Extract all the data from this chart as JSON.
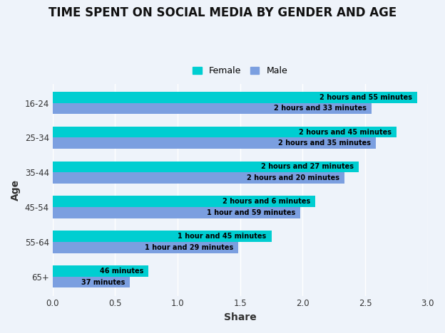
{
  "title": "TIME SPENT ON SOCIAL MEDIA BY GENDER AND AGE",
  "xlabel": "Share",
  "ylabel": "Age",
  "age_groups": [
    "16-24",
    "25-34",
    "35-44",
    "45-54",
    "55-64",
    "65+"
  ],
  "female_values": [
    2.917,
    2.75,
    2.45,
    2.1,
    1.75,
    0.767
  ],
  "male_values": [
    2.55,
    2.583,
    2.333,
    1.983,
    1.483,
    0.617
  ],
  "female_labels": [
    "2 hours and 55 minutes",
    "2 hours and 45 minutes",
    "2 hours and 27 minutes",
    "2 hours and 6 minutes",
    "1 hour and 45 minutes",
    "46 minutes"
  ],
  "male_labels": [
    "2 hours and 33 minutes",
    "2 hours and 35 minutes",
    "2 hours and 20 minutes",
    "1 hour and 59 minutes",
    "1 hour and 29 minutes",
    "37 minutes"
  ],
  "female_color": "#00CED1",
  "male_color": "#7B9FE0",
  "xlim": [
    0,
    3.0
  ],
  "xticks": [
    0.0,
    0.5,
    1.0,
    1.5,
    2.0,
    2.5,
    3.0
  ],
  "background_color": "#EEF3FA",
  "bar_height": 0.32,
  "title_fontsize": 12,
  "label_fontsize": 7,
  "tick_fontsize": 8.5,
  "legend_fontsize": 9
}
